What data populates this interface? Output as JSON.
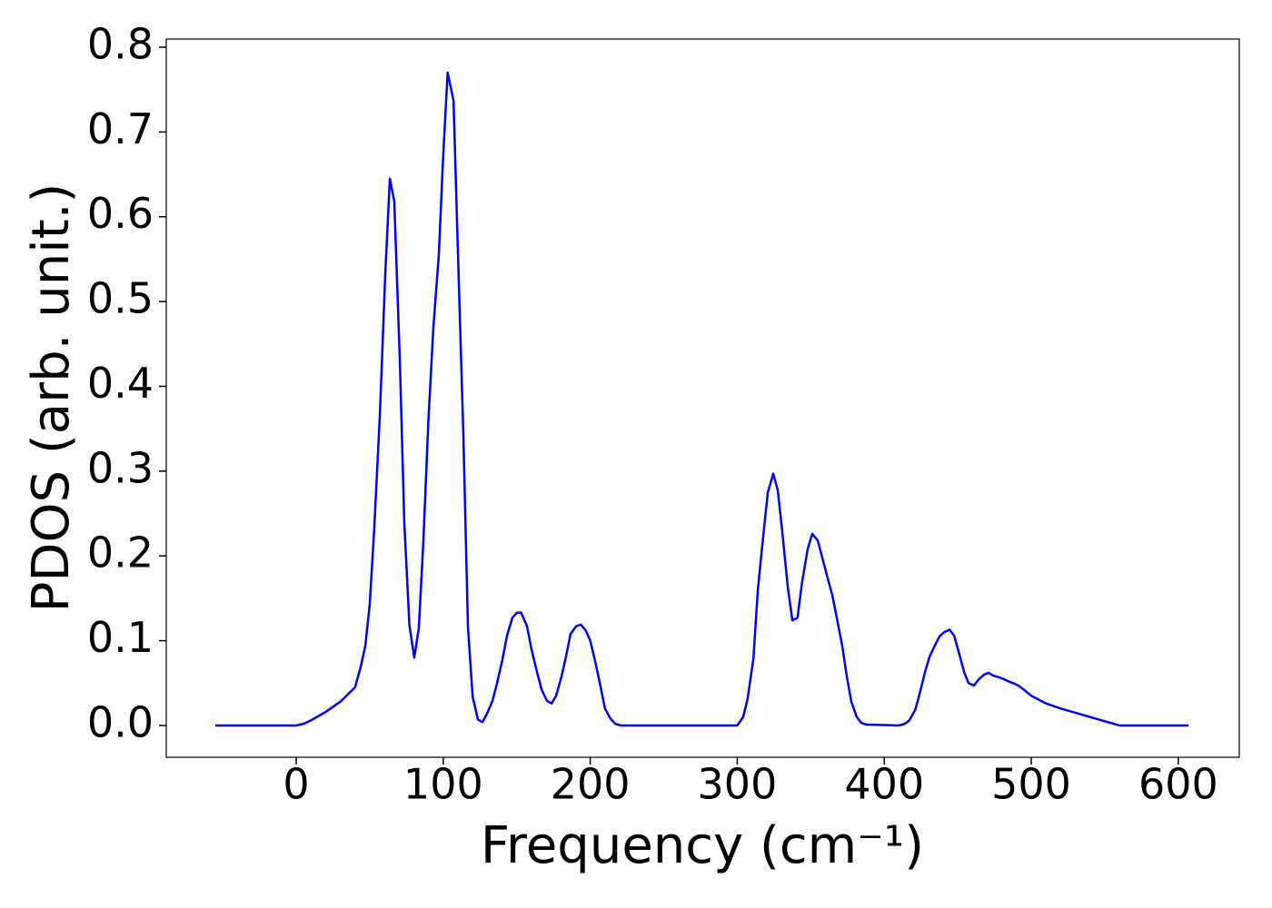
{
  "chart_data": {
    "type": "line",
    "xlabel": "Frequency (cm⁻¹)",
    "ylabel": "PDOS (arb. unit.)",
    "xlim": [
      -88.4,
      641.5
    ],
    "ylim": [
      -0.0375,
      0.8096
    ],
    "xticks": [
      0,
      100,
      200,
      300,
      400,
      500,
      600
    ],
    "yticks": [
      {
        "value": 0,
        "label": "0.0"
      },
      0.1,
      0.2,
      0.3,
      0.4,
      0.5,
      0.6,
      0.7,
      0.8
    ],
    "x": [
      -55,
      0,
      5,
      10,
      20,
      30,
      40,
      44,
      47,
      50,
      53,
      57,
      60.5,
      63.7,
      66.7,
      70.5,
      73.5,
      77,
      80.3,
      83.4,
      86.5,
      90,
      93.3,
      97,
      100,
      103,
      107,
      110,
      113.7,
      116.8,
      120,
      123.6,
      126.7,
      129.8,
      133.5,
      136.6,
      140.3,
      143.4,
      147,
      150,
      153,
      157,
      160,
      163.8,
      167,
      170.6,
      173.7,
      176.8,
      180.5,
      183.6,
      186.6,
      190.4,
      193.5,
      197,
      200,
      203.3,
      207,
      210,
      213.8,
      217,
      220.6,
      300,
      304,
      307,
      311,
      314,
      317.7,
      320.8,
      324.5,
      327.6,
      330.7,
      334.4,
      337.5,
      341,
      344,
      347.9,
      351,
      354.8,
      357.8,
      361,
      364.6,
      367.7,
      371.5,
      374.5,
      377.6,
      381.3,
      384.4,
      388,
      410,
      414,
      417,
      421,
      424,
      427.7,
      430.8,
      434,
      437.6,
      440.7,
      444.4,
      447.5,
      450.6,
      454.3,
      457.3,
      461,
      464,
      467.9,
      471,
      474,
      477.7,
      480.8,
      484.5,
      487.6,
      491.3,
      494.4,
      500,
      510,
      520,
      530,
      540,
      550,
      556,
      560,
      607
    ],
    "series": [
      {
        "color": "#0000ff",
        "values": [
          0,
          0,
          0.002,
          0.006,
          0.016,
          0.028,
          0.045,
          0.07,
          0.094,
          0.143,
          0.23,
          0.37,
          0.53,
          0.645,
          0.618,
          0.43,
          0.24,
          0.118,
          0.08,
          0.115,
          0.218,
          0.363,
          0.47,
          0.555,
          0.673,
          0.77,
          0.737,
          0.558,
          0.342,
          0.117,
          0.034,
          0.007,
          0.004,
          0.014,
          0.029,
          0.05,
          0.078,
          0.106,
          0.127,
          0.133,
          0.133,
          0.117,
          0.09,
          0.063,
          0.042,
          0.029,
          0.026,
          0.035,
          0.058,
          0.082,
          0.108,
          0.117,
          0.119,
          0.112,
          0.1,
          0.076,
          0.046,
          0.02,
          0.008,
          0.002,
          0,
          0,
          0.01,
          0.031,
          0.079,
          0.16,
          0.224,
          0.275,
          0.297,
          0.277,
          0.227,
          0.163,
          0.124,
          0.127,
          0.168,
          0.208,
          0.226,
          0.218,
          0.198,
          0.177,
          0.154,
          0.127,
          0.093,
          0.058,
          0.028,
          0.01,
          0.003,
          0.001,
          0,
          0.002,
          0.006,
          0.018,
          0.037,
          0.063,
          0.081,
          0.093,
          0.105,
          0.11,
          0.113,
          0.106,
          0.087,
          0.063,
          0.05,
          0.047,
          0.054,
          0.06,
          0.062,
          0.059,
          0.057,
          0.055,
          0.052,
          0.05,
          0.047,
          0.043,
          0.035,
          0.026,
          0.02,
          0.015,
          0.01,
          0.005,
          0.002,
          0,
          0
        ]
      }
    ]
  }
}
